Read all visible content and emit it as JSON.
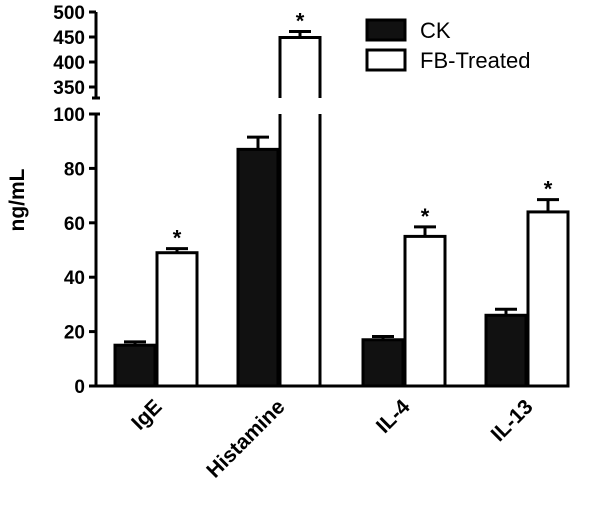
{
  "chart_data": {
    "type": "bar",
    "categories": [
      "IgE",
      "Histamine",
      "IL-4",
      "IL-13"
    ],
    "series": [
      {
        "name": "CK",
        "values": [
          15,
          87,
          17,
          26
        ],
        "errors": [
          1.2,
          4.5,
          1.2,
          2.2
        ],
        "color": "#111111"
      },
      {
        "name": "FB-Treated",
        "values": [
          49,
          449,
          55,
          64
        ],
        "errors": [
          1.5,
          12,
          3.5,
          4.5
        ],
        "color": "#ffffff"
      }
    ],
    "significance": [
      "*",
      "*",
      "*",
      "*"
    ],
    "ylabel": "ng/mL",
    "xlabel": "",
    "y_axis_break": {
      "lower_range": [
        0,
        100
      ],
      "upper_range": [
        330,
        500
      ]
    },
    "yticks_lower": [
      "0",
      "20",
      "40",
      "60",
      "80",
      "100"
    ],
    "yticks_upper": [
      "350",
      "400",
      "450",
      "500"
    ],
    "legend_position": "top-right",
    "grid": false
  }
}
